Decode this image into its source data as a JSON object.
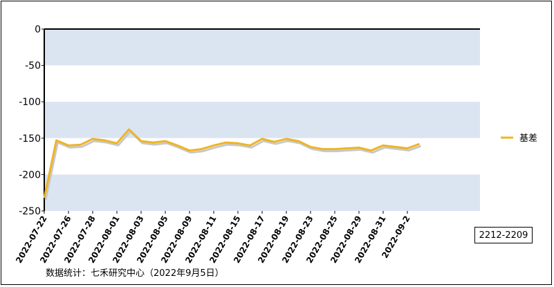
{
  "chart_data": {
    "type": "line",
    "x_tick_labels": [
      "2022-07-22",
      "2022-07-26",
      "2022-07-28",
      "2022-08-01",
      "2022-08-03",
      "2022-08-05",
      "2022-08-09",
      "2022-08-11",
      "2022-08-15",
      "2022-08-17",
      "2022-08-19",
      "2022-08-23",
      "2022-08-25",
      "2022-08-29",
      "2022-08-31",
      "2022-09-2"
    ],
    "x": [
      "2022-07-22",
      "2022-07-25",
      "2022-07-26",
      "2022-07-27",
      "2022-07-28",
      "2022-07-29",
      "2022-08-01",
      "2022-08-02",
      "2022-08-03",
      "2022-08-04",
      "2022-08-05",
      "2022-08-08",
      "2022-08-09",
      "2022-08-10",
      "2022-08-11",
      "2022-08-12",
      "2022-08-15",
      "2022-08-16",
      "2022-08-17",
      "2022-08-18",
      "2022-08-19",
      "2022-08-22",
      "2022-08-23",
      "2022-08-24",
      "2022-08-25",
      "2022-08-26",
      "2022-08-29",
      "2022-08-30",
      "2022-08-31",
      "2022-09-01",
      "2022-09-02",
      "2022-09-05"
    ],
    "series": [
      {
        "name": "基差",
        "color": "#f0b323",
        "values": [
          -232,
          -153,
          -160,
          -159,
          -151,
          -153,
          -157,
          -138,
          -154,
          -156,
          -154,
          -160,
          -167,
          -165,
          -160,
          -156,
          -157,
          -160,
          -151,
          -155,
          -151,
          -154,
          -162,
          -165,
          -165,
          -164,
          -163,
          -167,
          -160,
          -162,
          -164,
          -158
        ]
      }
    ],
    "ylim": [
      -250,
      0
    ],
    "yticks": [
      0,
      -50,
      -100,
      -150,
      -200,
      -250
    ],
    "band_colors": [
      "#dbe5f1",
      "#ffffff"
    ],
    "legend_position": "right",
    "grid": false
  },
  "code_label": "2212-2209",
  "source_note": "数据统计：七禾研究中心（2022年9月5日）"
}
